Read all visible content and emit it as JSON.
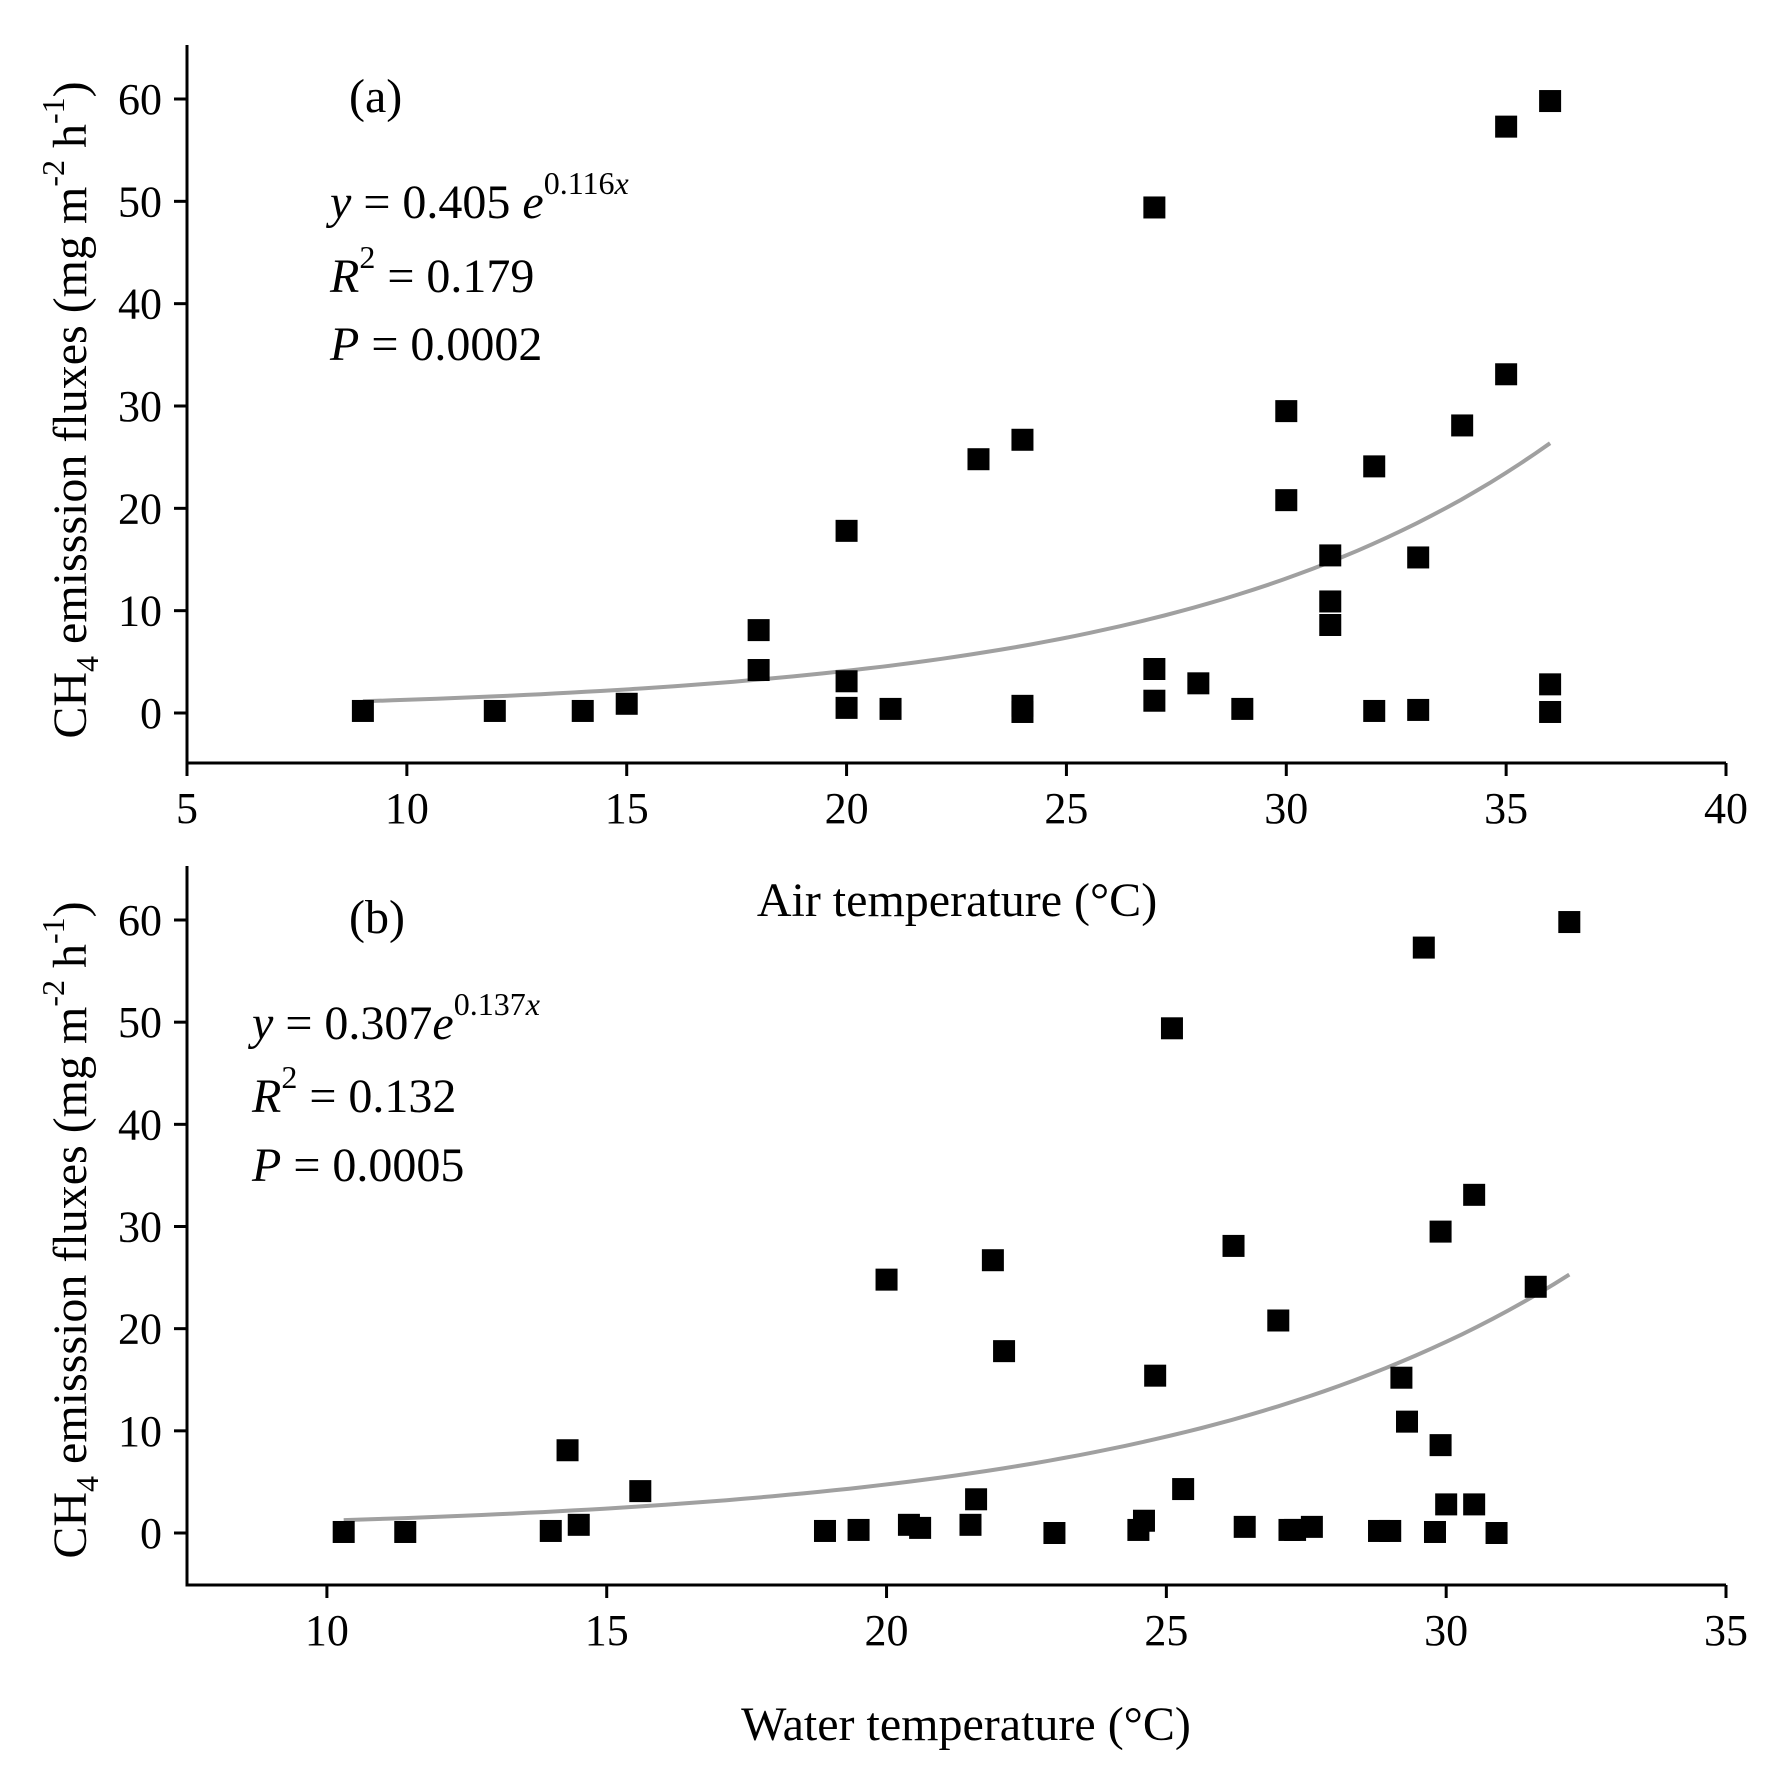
{
  "chart_data": [
    {
      "type": "scatter",
      "panel_label": "(a)",
      "xlabel": "Air temperature (°C)",
      "ylabel": {
        "prefix": "CH",
        "subscript": "4",
        "middle": " emisssion fluxes (mg m",
        "sup1": "-2",
        "middle2": " h",
        "sup2": "-1",
        "suffix": ")"
      },
      "xlim": [
        5,
        40
      ],
      "ylim": [
        -5,
        65
      ],
      "xticks": [
        5,
        10,
        15,
        20,
        25,
        30,
        35,
        40
      ],
      "yticks": [
        0,
        10,
        20,
        30,
        40,
        50,
        60
      ],
      "equation": {
        "lhs": "y",
        "eq": " = 0.405 ",
        "base": "e",
        "exp": "0.116",
        "exp_var": "x",
        "r2_symbol": "R",
        "r2_exp": "2",
        "r2_value": " = 0.179",
        "p_symbol": "P",
        "p_value": " = 0.0002"
      },
      "fit": {
        "type": "exponential",
        "a": 0.405,
        "b": 0.116,
        "x_range": [
          9,
          36
        ],
        "color": "#a0a0a0"
      },
      "marker_color": "#000000",
      "points": [
        {
          "x": 9,
          "y": 0.2
        },
        {
          "x": 12,
          "y": 0.2
        },
        {
          "x": 14,
          "y": 0.2
        },
        {
          "x": 15,
          "y": 0.9
        },
        {
          "x": 18,
          "y": 8.1
        },
        {
          "x": 18,
          "y": 4.2
        },
        {
          "x": 20,
          "y": 17.8
        },
        {
          "x": 20,
          "y": 3.1
        },
        {
          "x": 20,
          "y": 0.5
        },
        {
          "x": 21,
          "y": 0.4
        },
        {
          "x": 23,
          "y": 24.8
        },
        {
          "x": 24,
          "y": 26.7
        },
        {
          "x": 24,
          "y": 0.7
        },
        {
          "x": 24,
          "y": 0.1
        },
        {
          "x": 27,
          "y": 49.4
        },
        {
          "x": 27,
          "y": 4.3
        },
        {
          "x": 27,
          "y": 1.2
        },
        {
          "x": 28,
          "y": 2.9
        },
        {
          "x": 29,
          "y": 0.4
        },
        {
          "x": 30,
          "y": 29.5
        },
        {
          "x": 30,
          "y": 20.8
        },
        {
          "x": 31,
          "y": 15.4
        },
        {
          "x": 31,
          "y": 10.9
        },
        {
          "x": 31,
          "y": 8.6
        },
        {
          "x": 32,
          "y": 24.1
        },
        {
          "x": 32,
          "y": 0.2
        },
        {
          "x": 33,
          "y": 15.2
        },
        {
          "x": 33,
          "y": 0.3
        },
        {
          "x": 34,
          "y": 28.1
        },
        {
          "x": 35,
          "y": 57.3
        },
        {
          "x": 35,
          "y": 33.1
        },
        {
          "x": 36,
          "y": 59.8
        },
        {
          "x": 36,
          "y": 2.8
        },
        {
          "x": 36,
          "y": 0.1
        }
      ]
    },
    {
      "type": "scatter",
      "panel_label": "(b)",
      "xlabel": "Water temperature (°C)",
      "ylabel": {
        "prefix": "CH",
        "subscript": "4",
        "middle": " emisssion fluxes (mg m",
        "sup1": "-2",
        "middle2": " h",
        "sup2": "-1",
        "suffix": ")"
      },
      "xlim": [
        7.5,
        35
      ],
      "ylim": [
        -5,
        65
      ],
      "xticks": [
        10,
        15,
        20,
        25,
        30,
        35
      ],
      "yticks": [
        0,
        10,
        20,
        30,
        40,
        50,
        60
      ],
      "equation": {
        "lhs": "y",
        "eq": " = 0.307",
        "base": "e",
        "exp": "0.137",
        "exp_var": "x",
        "r2_symbol": "R",
        "r2_exp": "2",
        "r2_value": " = 0.132",
        "p_symbol": "P",
        "p_value": " = 0.0005"
      },
      "fit": {
        "type": "exponential",
        "a": 0.307,
        "b": 0.137,
        "x_range": [
          10.3,
          32.2
        ],
        "color": "#a0a0a0"
      },
      "marker_color": "#000000",
      "points": [
        {
          "x": 10.3,
          "y": 0.1
        },
        {
          "x": 11.4,
          "y": 0.1
        },
        {
          "x": 14.0,
          "y": 0.2
        },
        {
          "x": 14.3,
          "y": 8.1
        },
        {
          "x": 14.5,
          "y": 0.8
        },
        {
          "x": 15.6,
          "y": 4.1
        },
        {
          "x": 18.9,
          "y": 0.2
        },
        {
          "x": 19.5,
          "y": 0.3
        },
        {
          "x": 20.0,
          "y": 24.8
        },
        {
          "x": 20.4,
          "y": 0.8
        },
        {
          "x": 20.6,
          "y": 0.5
        },
        {
          "x": 21.5,
          "y": 0.8
        },
        {
          "x": 21.6,
          "y": 3.3
        },
        {
          "x": 21.9,
          "y": 26.7
        },
        {
          "x": 22.1,
          "y": 17.8
        },
        {
          "x": 23.0,
          "y": 0.0
        },
        {
          "x": 24.5,
          "y": 0.3
        },
        {
          "x": 24.6,
          "y": 1.2
        },
        {
          "x": 24.8,
          "y": 15.4
        },
        {
          "x": 25.1,
          "y": 49.4
        },
        {
          "x": 25.3,
          "y": 4.3
        },
        {
          "x": 26.2,
          "y": 28.1
        },
        {
          "x": 26.4,
          "y": 0.6
        },
        {
          "x": 27.0,
          "y": 20.8
        },
        {
          "x": 27.2,
          "y": 0.3
        },
        {
          "x": 27.3,
          "y": 0.3
        },
        {
          "x": 27.6,
          "y": 0.6
        },
        {
          "x": 28.8,
          "y": 0.2
        },
        {
          "x": 29.0,
          "y": 0.2
        },
        {
          "x": 29.2,
          "y": 15.2
        },
        {
          "x": 29.3,
          "y": 10.9
        },
        {
          "x": 29.6,
          "y": 57.3
        },
        {
          "x": 29.8,
          "y": 0.1
        },
        {
          "x": 29.9,
          "y": 29.5
        },
        {
          "x": 29.9,
          "y": 8.6
        },
        {
          "x": 30.0,
          "y": 2.8
        },
        {
          "x": 30.5,
          "y": 33.1
        },
        {
          "x": 30.5,
          "y": 2.8
        },
        {
          "x": 30.9,
          "y": 0.0
        },
        {
          "x": 31.6,
          "y": 24.1
        },
        {
          "x": 32.2,
          "y": 59.8
        }
      ]
    }
  ]
}
